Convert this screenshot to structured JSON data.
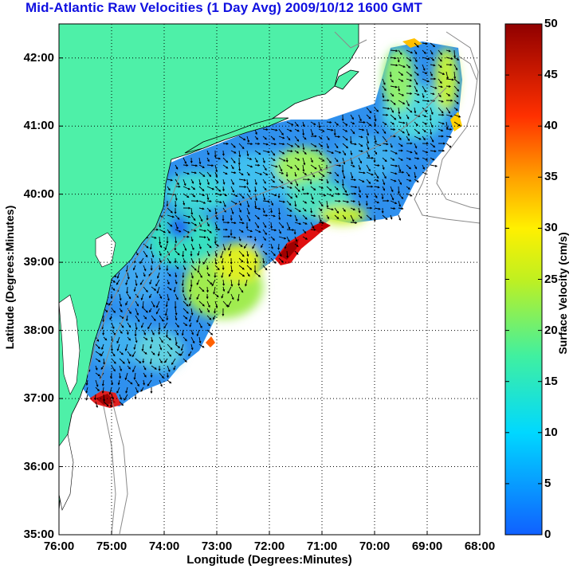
{
  "title": "Mid-Atlantic Raw Velocities (1 Day Avg) 2009/10/12 1600 GMT",
  "x_axis_label": "Longitude (Degrees:Minutes)",
  "y_axis_label": "Latitude (Degrees:Minutes)",
  "colorbar_label": "Surface Velocity (cm/s)",
  "x_ticks": [
    "76:00",
    "75:00",
    "74:00",
    "73:00",
    "72:00",
    "71:00",
    "70:00",
    "69:00",
    "68:00"
  ],
  "y_ticks": [
    "42:00",
    "41:00",
    "40:00",
    "39:00",
    "38:00",
    "37:00",
    "36:00",
    "35:00"
  ],
  "colorbar_ticks": [
    "50",
    "45",
    "40",
    "35",
    "30",
    "25",
    "20",
    "15",
    "10",
    "5",
    "0"
  ],
  "colorbar_range": [
    0,
    50
  ],
  "colors": {
    "title": "#1010e0",
    "land": "#4ef0a8",
    "ocean": "#ffffff",
    "field_low": "#2a8cf0",
    "field_high": "#c00000"
  },
  "map_extent": {
    "lon": [
      -76,
      -68
    ],
    "lat": [
      35,
      42.5
    ]
  },
  "grid": "dotted"
}
